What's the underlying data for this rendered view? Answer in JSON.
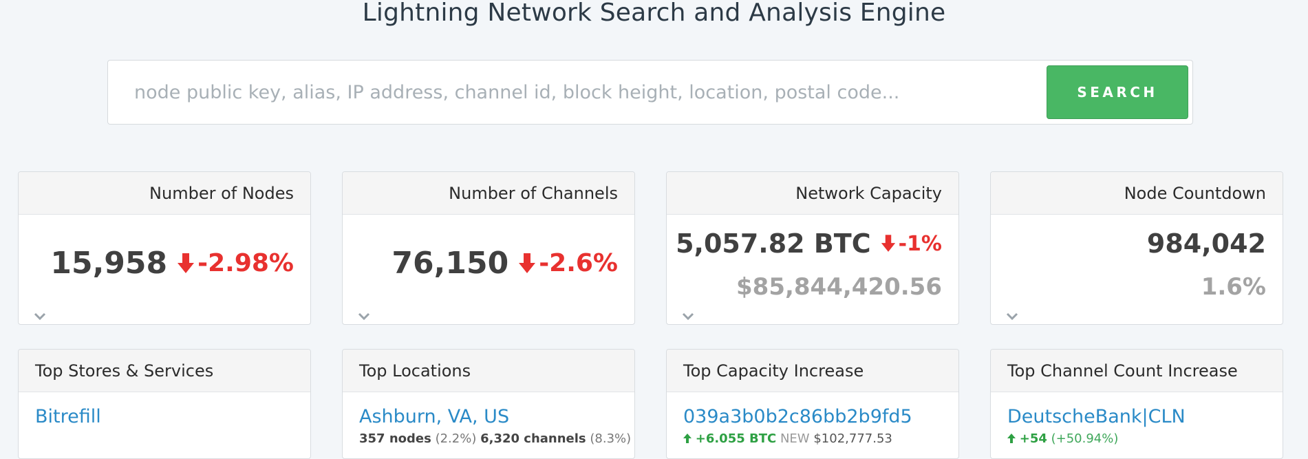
{
  "header": {
    "title": "Lightning Network Search and Analysis Engine"
  },
  "search": {
    "placeholder": "node public key, alias, IP address, channel id, block height, location, postal code...",
    "value": "",
    "button_label": "SEARCH"
  },
  "colors": {
    "accent_green": "#49b764",
    "negative_red": "#e8312f",
    "link_blue": "#2a8ac7",
    "positive_green": "#2ea043"
  },
  "stats": [
    {
      "title": "Number of Nodes",
      "value": "15,958",
      "change": "-2.98%",
      "change_dir": "down",
      "sub": ""
    },
    {
      "title": "Number of Channels",
      "value": "76,150",
      "change": "-2.6%",
      "change_dir": "down",
      "sub": ""
    },
    {
      "title": "Network Capacity",
      "value": "5,057.82 BTC",
      "change": "-1%",
      "change_dir": "down",
      "sub": "$85,844,420.56"
    },
    {
      "title": "Node Countdown",
      "value": "984,042",
      "change": "",
      "sub": "1.6%"
    }
  ],
  "lists": [
    {
      "title": "Top Stores & Services",
      "item": "Bitrefill"
    },
    {
      "title": "Top Locations",
      "item": "Ashburn, VA, US",
      "nodes": "357 nodes",
      "nodes_pct": "(2.2%)",
      "channels": "6,320 channels",
      "channels_pct": "(8.3%)"
    },
    {
      "title": "Top Capacity Increase",
      "item": "039a3b0b2c86bb2b9fd5",
      "increase": "+6.055 BTC",
      "badge": "NEW",
      "usd": "$102,777.53"
    },
    {
      "title": "Top Channel Count Increase",
      "item": "DeutscheBank|CLN",
      "increase": "+54",
      "pct": "(+50.94%)"
    }
  ]
}
